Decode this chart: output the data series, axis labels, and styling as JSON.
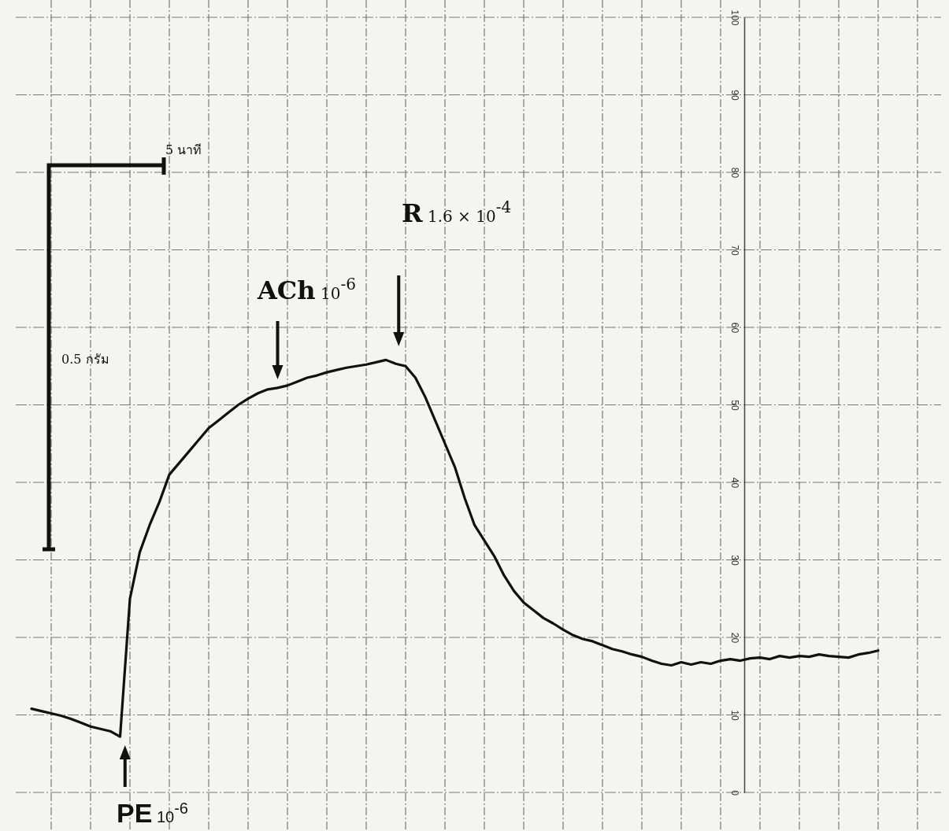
{
  "chart_data": {
    "type": "line",
    "categories": [
      null,
      null,
      null,
      null,
      null,
      null,
      null,
      null,
      null,
      null,
      null,
      null,
      null,
      null,
      null,
      null,
      null,
      null,
      null,
      null,
      null,
      null,
      null,
      null,
      null,
      null,
      null,
      null,
      null,
      null,
      null,
      null,
      null,
      null,
      null,
      null,
      null,
      null,
      null,
      null,
      null,
      null,
      null,
      null,
      null,
      null,
      null,
      null,
      null,
      null,
      null,
      null,
      null,
      null,
      null,
      null,
      null,
      null,
      null,
      null,
      null,
      null,
      null,
      null,
      null,
      null,
      null,
      null,
      null,
      null,
      null,
      null,
      null,
      null,
      null,
      null,
      null,
      null,
      null,
      null,
      null,
      null,
      null,
      null,
      null,
      null,
      null
    ],
    "series": [
      {
        "color": "#111111",
        "values": [
          10.8,
          10.5,
          10.2,
          9.9,
          9.5,
          9.0,
          8.5,
          8.2,
          7.9,
          7.2,
          25,
          31,
          34.5,
          37.5,
          41,
          42.5,
          44,
          45.5,
          47,
          48,
          49,
          50,
          50.8,
          51.5,
          52,
          52.2,
          52.5,
          53,
          53.5,
          53.8,
          54.2,
          54.5,
          54.8,
          55,
          55.2,
          55.5,
          55.8,
          55.3,
          55,
          53.5,
          51,
          48,
          45,
          42,
          38,
          34.5,
          32.5,
          30.5,
          28,
          26,
          24.5,
          23.5,
          22.5,
          21.8,
          21,
          20.3,
          19.8,
          19.5,
          19,
          18.5,
          18.2,
          17.8,
          17.5,
          17,
          16.6,
          16.4,
          16.8,
          16.5,
          16.8,
          16.6,
          17,
          17.2,
          17,
          17.3,
          17.4,
          17.2,
          17.6,
          17.4,
          17.6,
          17.5,
          17.8,
          17.6,
          17.5,
          17.4,
          17.8,
          18,
          18.3
        ]
      }
    ],
    "ylim": [
      0,
      100
    ],
    "yticks": [
      0,
      10,
      20,
      30,
      40,
      50,
      60,
      70,
      80,
      90,
      100
    ],
    "grid": true,
    "annotations": [
      "PE 10$^{-6}$",
      "ACh 10$^{-6}$",
      "R 1.6 × 10$^{-4}$",
      "5 นาที",
      "0.5 กรัม"
    ]
  }
}
